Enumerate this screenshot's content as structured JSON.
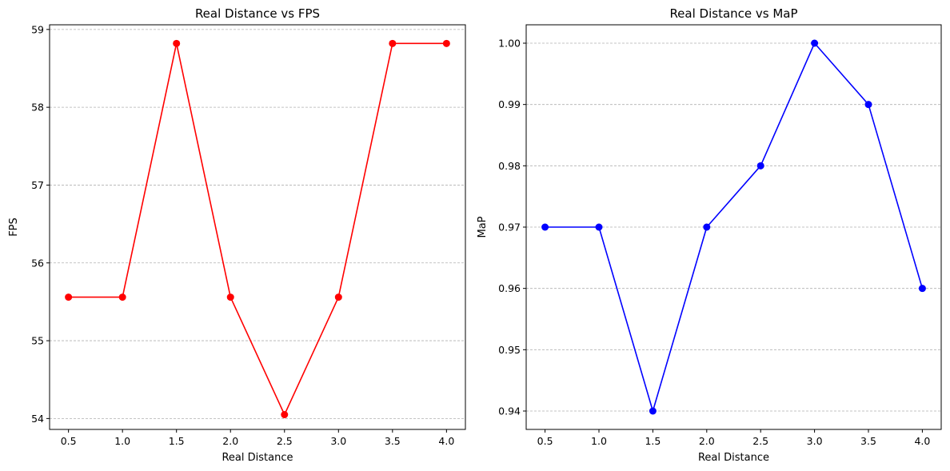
{
  "chart_data": [
    {
      "type": "line",
      "title": "Real Distance vs FPS",
      "xlabel": "Real Distance",
      "ylabel": "FPS",
      "x": [
        0.5,
        1.0,
        1.5,
        2.0,
        2.5,
        3.0,
        3.5,
        4.0
      ],
      "series": [
        {
          "values": [
            55.56,
            55.56,
            58.82,
            55.56,
            54.05,
            55.56,
            58.82,
            58.82
          ],
          "color": "#ff0000",
          "marker": "circle"
        }
      ],
      "xlim": [
        0.325,
        4.175
      ],
      "ylim": [
        53.86,
        59.06
      ],
      "x_ticks": [
        "0.5",
        "1.0",
        "1.5",
        "2.0",
        "2.5",
        "3.0",
        "3.5",
        "4.0"
      ],
      "y_ticks": [
        "54",
        "55",
        "56",
        "57",
        "58",
        "59"
      ],
      "grid": "y-dashed"
    },
    {
      "type": "line",
      "title": "Real Distance vs MaP",
      "xlabel": "Real Distance",
      "ylabel": "MaP",
      "x": [
        0.5,
        1.0,
        1.5,
        2.0,
        2.5,
        3.0,
        3.5,
        4.0
      ],
      "series": [
        {
          "values": [
            0.97,
            0.97,
            0.94,
            0.97,
            0.98,
            1.0,
            0.99,
            0.96
          ],
          "color": "#0000ff",
          "marker": "circle"
        }
      ],
      "xlim": [
        0.325,
        4.175
      ],
      "ylim": [
        0.937,
        1.003
      ],
      "x_ticks": [
        "0.5",
        "1.0",
        "1.5",
        "2.0",
        "2.5",
        "3.0",
        "3.5",
        "4.0"
      ],
      "y_ticks": [
        "0.94",
        "0.95",
        "0.96",
        "0.97",
        "0.98",
        "0.99",
        "1.00"
      ],
      "grid": "y-dashed"
    }
  ]
}
